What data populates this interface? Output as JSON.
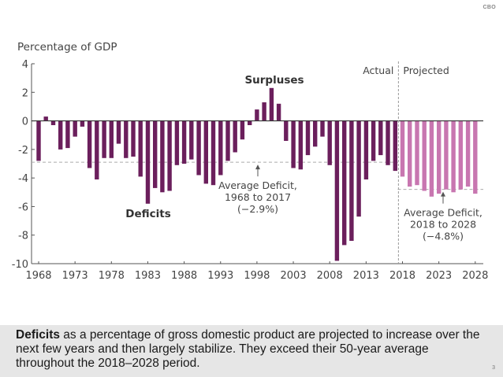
{
  "header": {
    "source_label": "CBO"
  },
  "chart_data": {
    "type": "bar",
    "title": "",
    "ylabel": "Percentage of GDP",
    "xlabel": "",
    "ylim": [
      -10,
      4
    ],
    "yticks": [
      4,
      2,
      0,
      -2,
      -4,
      -6,
      -8,
      -10
    ],
    "ytick_labels": [
      "4",
      "2",
      "0",
      "-2",
      "-4",
      "-6",
      "-8",
      "-10"
    ],
    "xtick_labels": [
      "1968",
      "1973",
      "1978",
      "1983",
      "1988",
      "1993",
      "1998",
      "2003",
      "2008",
      "2013",
      "2018",
      "2023",
      "2028"
    ],
    "xlim": [
      1968,
      2028
    ],
    "grid": false,
    "colors": {
      "actual": "#6b1f5c",
      "projected": "#c876b0",
      "axis": "#555555",
      "text": "#444444",
      "reference_line": "#aaaaaa"
    },
    "series": [
      {
        "name": "Actual",
        "years": [
          1968,
          1969,
          1970,
          1971,
          1972,
          1973,
          1974,
          1975,
          1976,
          1977,
          1978,
          1979,
          1980,
          1981,
          1982,
          1983,
          1984,
          1985,
          1986,
          1987,
          1988,
          1989,
          1990,
          1991,
          1992,
          1993,
          1994,
          1995,
          1996,
          1997,
          1998,
          1999,
          2000,
          2001,
          2002,
          2003,
          2004,
          2005,
          2006,
          2007,
          2008,
          2009,
          2010,
          2011,
          2012,
          2013,
          2014,
          2015,
          2016,
          2017
        ],
        "values": [
          -2.8,
          0.3,
          -0.3,
          -2.0,
          -1.9,
          -1.1,
          -0.4,
          -3.3,
          -4.1,
          -2.6,
          -2.6,
          -1.6,
          -2.6,
          -2.5,
          -3.9,
          -5.8,
          -4.7,
          -5.0,
          -4.9,
          -3.1,
          -3.0,
          -2.7,
          -3.8,
          -4.4,
          -4.5,
          -3.8,
          -2.8,
          -2.2,
          -1.3,
          -0.3,
          0.8,
          1.3,
          2.3,
          1.2,
          -1.4,
          -3.3,
          -3.4,
          -2.4,
          -1.8,
          -1.1,
          -3.1,
          -9.8,
          -8.7,
          -8.4,
          -6.7,
          -4.1,
          -2.8,
          -2.4,
          -3.1,
          -3.5
        ]
      },
      {
        "name": "Projected",
        "years": [
          2018,
          2019,
          2020,
          2021,
          2022,
          2023,
          2024,
          2025,
          2026,
          2027,
          2028
        ],
        "values": [
          -3.9,
          -4.6,
          -4.5,
          -4.9,
          -5.3,
          -5.1,
          -4.8,
          -5.0,
          -4.8,
          -4.6,
          -5.1
        ]
      }
    ],
    "reference_lines": [
      {
        "name": "Average Deficit, 1968 to 2017",
        "value": -2.9,
        "from": 1968,
        "to": 2017
      },
      {
        "name": "Average Deficit, 2018 to 2028",
        "value": -4.8,
        "from": 2018,
        "to": 2028
      }
    ],
    "divider_year": 2017.5,
    "annotations": {
      "actual_label": "Actual",
      "projected_label": "Projected",
      "surpluses_label": "Surpluses",
      "deficits_label": "Deficits",
      "avg1_lines": [
        "Average Deficit,",
        "1968 to 2017",
        "(−2.9%)"
      ],
      "avg2_lines": [
        "Average Deficit,",
        "2018 to 2028",
        "(−4.8%)"
      ]
    }
  },
  "caption": {
    "bold": "Deficits",
    "text": " as a percentage of gross domestic product are projected to increase over the next few years and then largely stabilize. They exceed their 50-year average throughout the 2018–2028 period."
  },
  "footer": {
    "page_number": "3"
  }
}
